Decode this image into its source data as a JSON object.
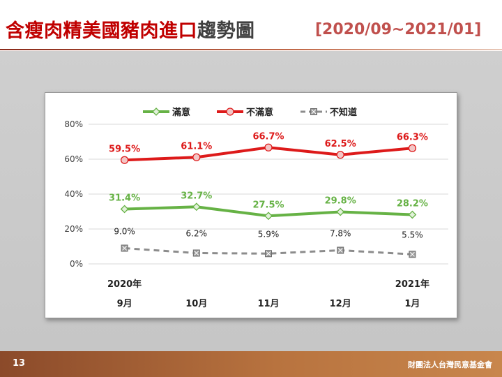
{
  "slide": {
    "title_red": "含瘦肉精美國豬肉進口",
    "title_dark": "趨勢圖",
    "date_range": "[2020/09~2021/01]",
    "page_number": "13",
    "organization": "財團法人台灣民意基金會"
  },
  "colors": {
    "title_red": "#c00000",
    "satisfied": "#66b245",
    "dissatisfied": "#dd1a1a",
    "unknown": "#8c8c8c",
    "footer": "#b06a3a"
  },
  "chart_data": {
    "type": "line",
    "categories": [
      "9月",
      "10月",
      "11月",
      "12月",
      "1月"
    ],
    "year_labels": [
      "2020年",
      "",
      "",
      "",
      "2021年"
    ],
    "ylim": [
      0,
      80
    ],
    "yticks": [
      "0%",
      "20%",
      "40%",
      "60%",
      "80%"
    ],
    "grid": true,
    "legend_position": "top",
    "series": [
      {
        "name": "滿意",
        "values": [
          31.4,
          32.7,
          27.5,
          29.8,
          28.2
        ],
        "labels": [
          "31.4%",
          "32.7%",
          "27.5%",
          "29.8%",
          "28.2%"
        ],
        "color": "#66b245",
        "marker": "diamond",
        "dash": false
      },
      {
        "name": "不滿意",
        "values": [
          59.5,
          61.1,
          66.7,
          62.5,
          66.3
        ],
        "labels": [
          "59.5%",
          "61.1%",
          "66.7%",
          "62.5%",
          "66.3%"
        ],
        "color": "#dd1a1a",
        "marker": "circle",
        "dash": false
      },
      {
        "name": "不知道",
        "values": [
          9.0,
          6.2,
          5.9,
          7.8,
          5.5
        ],
        "labels": [
          "9.0%",
          "6.2%",
          "5.9%",
          "7.8%",
          "5.5%"
        ],
        "color": "#8c8c8c",
        "marker": "square",
        "dash": true
      }
    ]
  }
}
